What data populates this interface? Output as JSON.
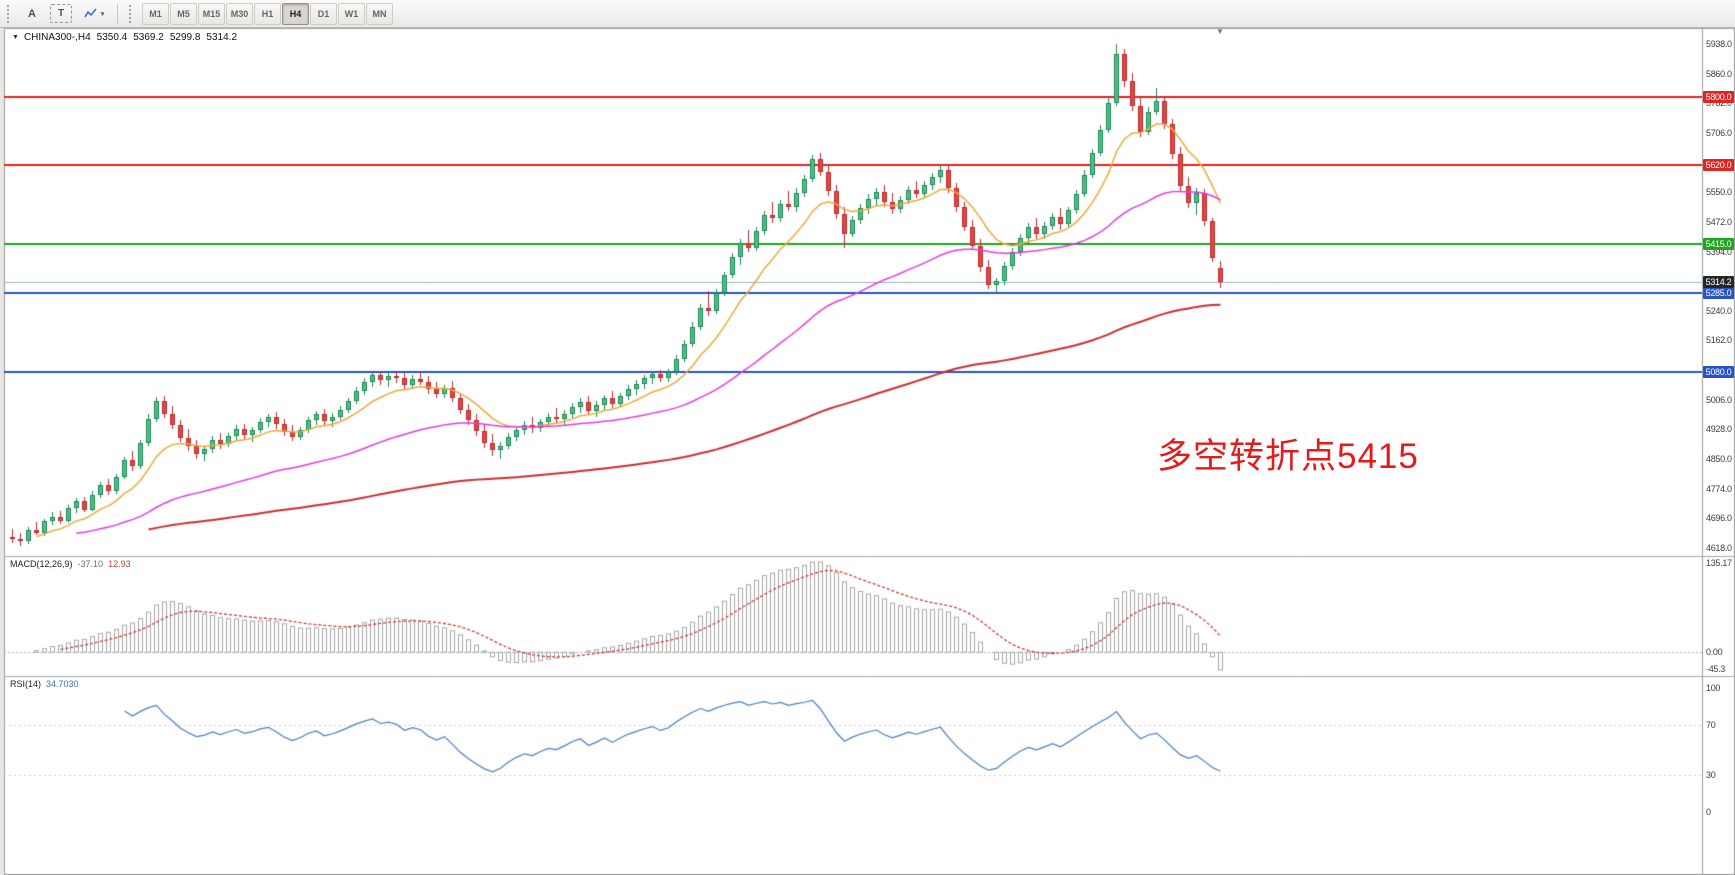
{
  "toolbar": {
    "tools": [
      {
        "id": "annotations",
        "label": "A"
      },
      {
        "id": "text",
        "label": "T"
      }
    ],
    "indicator_caret": "▾",
    "timeframes": [
      {
        "label": "M1",
        "active": false
      },
      {
        "label": "M5",
        "active": false
      },
      {
        "label": "M15",
        "active": false
      },
      {
        "label": "M30",
        "active": false
      },
      {
        "label": "H1",
        "active": false
      },
      {
        "label": "H4",
        "active": true
      },
      {
        "label": "D1",
        "active": false
      },
      {
        "label": "W1",
        "active": false
      },
      {
        "label": "MN",
        "active": false
      }
    ]
  },
  "header": {
    "caret": "▼",
    "symbol": "CHINA300-,H4",
    "open": "5350.4",
    "high": "5369.2",
    "low": "5299.8",
    "close": "5314.2"
  },
  "annotation": {
    "text": "多空转折点5415",
    "color": "#e31b1b"
  },
  "macd_panel": {
    "title": "MACD(12,26,9)",
    "main_value": "-37.10",
    "signal_value": "12.93",
    "axis": {
      "top": "135.17",
      "zero": "0.00",
      "bottom": "-45.3"
    }
  },
  "rsi_panel": {
    "title": "RSI(14)",
    "value": "34.7030",
    "axis": [
      "100",
      "70",
      "30",
      "0"
    ]
  },
  "price_axis": {
    "labels": [
      "5938.0",
      "5860.0",
      "5782.0",
      "5706.0",
      "5628.0",
      "5550.0",
      "5472.0",
      "5394.0",
      "5316.0",
      "5240.0",
      "5162.0",
      "5084.0",
      "5006.0",
      "4928.0",
      "4850.0",
      "4774.0",
      "4696.0",
      "4618.0"
    ],
    "current": {
      "price": 5314.2,
      "label": "5314.2",
      "bg": "#262626"
    }
  },
  "chart_data": {
    "type": "candlestick",
    "symbol": "CHINA300-",
    "timeframe": "H4",
    "title": "CHINA300-,H4",
    "last_ohlc": {
      "open": 5350.4,
      "high": 5369.2,
      "low": 5299.8,
      "close": 5314.2
    },
    "y_range": {
      "min": 4618,
      "max": 5938
    },
    "candle_colors": {
      "up": "#4ebd85",
      "up_border": "#1f8a57",
      "down": "#e24545",
      "down_border": "#b92f2f"
    },
    "hlines": [
      {
        "price": 5800.0,
        "label": "5800.0",
        "color": "#e32222"
      },
      {
        "price": 5620.0,
        "label": "5620.0",
        "color": "#e32222"
      },
      {
        "price": 5415.0,
        "label": "5415.0",
        "color": "#1fa51f"
      },
      {
        "price": 5285.0,
        "label": "5285.0",
        "color": "#2653c9"
      },
      {
        "price": 5080.0,
        "label": "5080.0",
        "color": "#2653c9"
      }
    ],
    "current_price_line": {
      "price": 5314.2,
      "color": "#9cb3c5"
    },
    "moving_averages": [
      {
        "period": 10,
        "color": "#efa93b",
        "start": 3
      },
      {
        "period": 45,
        "color": "#e53ae5",
        "start": 8
      },
      {
        "period": 150,
        "color": "#cf2e2e",
        "start": 17
      }
    ],
    "indicators": {
      "macd": {
        "fast": 12,
        "slow": 26,
        "signal": 9,
        "last_main": -37.1,
        "last_signal": 12.93,
        "axis_max": 135.17,
        "axis_min": -45.3,
        "bar_color": "#a8a8a8",
        "signal_color": "#d23b3b"
      },
      "rsi": {
        "period": 14,
        "last": 34.703,
        "levels": [
          70,
          30
        ],
        "line_color": "#4a7fc1"
      }
    },
    "ohlc": [
      [
        4648,
        4668,
        4630,
        4642
      ],
      [
        4642,
        4656,
        4622,
        4636
      ],
      [
        4636,
        4672,
        4628,
        4665
      ],
      [
        4665,
        4686,
        4652,
        4658
      ],
      [
        4658,
        4695,
        4650,
        4688
      ],
      [
        4688,
        4712,
        4678,
        4700
      ],
      [
        4700,
        4716,
        4680,
        4690
      ],
      [
        4690,
        4730,
        4684,
        4722
      ],
      [
        4722,
        4748,
        4710,
        4740
      ],
      [
        4740,
        4752,
        4712,
        4718
      ],
      [
        4718,
        4766,
        4714,
        4758
      ],
      [
        4758,
        4790,
        4748,
        4782
      ],
      [
        4782,
        4800,
        4756,
        4766
      ],
      [
        4766,
        4812,
        4760,
        4804
      ],
      [
        4804,
        4856,
        4798,
        4848
      ],
      [
        4848,
        4872,
        4820,
        4832
      ],
      [
        4832,
        4900,
        4826,
        4892
      ],
      [
        4892,
        4968,
        4886,
        4956
      ],
      [
        4956,
        5014,
        4948,
        5004
      ],
      [
        5004,
        5016,
        4958,
        4968
      ],
      [
        4968,
        4990,
        4930,
        4940
      ],
      [
        4940,
        4952,
        4896,
        4906
      ],
      [
        4906,
        4930,
        4872,
        4884
      ],
      [
        4884,
        4902,
        4852,
        4864
      ],
      [
        4864,
        4886,
        4846,
        4876
      ],
      [
        4876,
        4912,
        4868,
        4902
      ],
      [
        4902,
        4918,
        4878,
        4890
      ],
      [
        4890,
        4920,
        4882,
        4912
      ],
      [
        4912,
        4940,
        4900,
        4930
      ],
      [
        4930,
        4944,
        4902,
        4914
      ],
      [
        4914,
        4936,
        4896,
        4926
      ],
      [
        4926,
        4958,
        4918,
        4948
      ],
      [
        4948,
        4970,
        4934,
        4960
      ],
      [
        4960,
        4974,
        4930,
        4942
      ],
      [
        4942,
        4956,
        4912,
        4922
      ],
      [
        4922,
        4940,
        4898,
        4908
      ],
      [
        4908,
        4934,
        4900,
        4926
      ],
      [
        4926,
        4962,
        4920,
        4952
      ],
      [
        4952,
        4978,
        4940,
        4968
      ],
      [
        4968,
        4982,
        4938,
        4950
      ],
      [
        4950,
        4972,
        4936,
        4962
      ],
      [
        4962,
        4990,
        4952,
        4980
      ],
      [
        4980,
        5012,
        4972,
        5004
      ],
      [
        5004,
        5040,
        4996,
        5030
      ],
      [
        5030,
        5062,
        5020,
        5052
      ],
      [
        5052,
        5080,
        5040,
        5072
      ],
      [
        5072,
        5082,
        5046,
        5058
      ],
      [
        5058,
        5078,
        5040,
        5068
      ],
      [
        5068,
        5080,
        5050,
        5062
      ],
      [
        5062,
        5076,
        5032,
        5044
      ],
      [
        5044,
        5070,
        5034,
        5060
      ],
      [
        5060,
        5080,
        5044,
        5054
      ],
      [
        5054,
        5068,
        5022,
        5034
      ],
      [
        5034,
        5052,
        5010,
        5022
      ],
      [
        5022,
        5046,
        5012,
        5038
      ],
      [
        5038,
        5056,
        5000,
        5012
      ],
      [
        5012,
        5024,
        4968,
        4980
      ],
      [
        4980,
        4996,
        4940,
        4952
      ],
      [
        4952,
        4970,
        4912,
        4924
      ],
      [
        4924,
        4940,
        4880,
        4894
      ],
      [
        4894,
        4916,
        4858,
        4874
      ],
      [
        4874,
        4896,
        4850,
        4886
      ],
      [
        4886,
        4918,
        4878,
        4908
      ],
      [
        4908,
        4934,
        4898,
        4926
      ],
      [
        4926,
        4950,
        4914,
        4940
      ],
      [
        4940,
        4962,
        4920,
        4932
      ],
      [
        4932,
        4956,
        4922,
        4948
      ],
      [
        4948,
        4972,
        4936,
        4960
      ],
      [
        4960,
        4984,
        4944,
        4956
      ],
      [
        4956,
        4980,
        4940,
        4970
      ],
      [
        4970,
        4998,
        4958,
        4988
      ],
      [
        4988,
        5010,
        4972,
        5000
      ],
      [
        5000,
        5016,
        4966,
        4978
      ],
      [
        4978,
        5002,
        4960,
        4992
      ],
      [
        4992,
        5020,
        4980,
        5010
      ],
      [
        5010,
        5028,
        4984,
        4996
      ],
      [
        4996,
        5024,
        4986,
        5016
      ],
      [
        5016,
        5044,
        5006,
        5034
      ],
      [
        5034,
        5058,
        5020,
        5048
      ],
      [
        5048,
        5072,
        5034,
        5062
      ],
      [
        5062,
        5082,
        5048,
        5074
      ],
      [
        5074,
        5084,
        5052,
        5064
      ],
      [
        5064,
        5086,
        5054,
        5078
      ],
      [
        5078,
        5124,
        5070,
        5114
      ],
      [
        5114,
        5162,
        5106,
        5152
      ],
      [
        5152,
        5210,
        5144,
        5198
      ],
      [
        5198,
        5258,
        5190,
        5246
      ],
      [
        5246,
        5292,
        5226,
        5238
      ],
      [
        5238,
        5296,
        5230,
        5286
      ],
      [
        5286,
        5342,
        5278,
        5332
      ],
      [
        5332,
        5390,
        5324,
        5380
      ],
      [
        5380,
        5428,
        5360,
        5416
      ],
      [
        5416,
        5452,
        5392,
        5404
      ],
      [
        5404,
        5460,
        5396,
        5448
      ],
      [
        5448,
        5500,
        5438,
        5490
      ],
      [
        5490,
        5524,
        5470,
        5482
      ],
      [
        5482,
        5530,
        5472,
        5520
      ],
      [
        5520,
        5554,
        5500,
        5510
      ],
      [
        5510,
        5560,
        5498,
        5548
      ],
      [
        5548,
        5596,
        5536,
        5584
      ],
      [
        5584,
        5648,
        5576,
        5636
      ],
      [
        5636,
        5652,
        5592,
        5604
      ],
      [
        5604,
        5620,
        5540,
        5552
      ],
      [
        5552,
        5568,
        5480,
        5492
      ],
      [
        5492,
        5510,
        5404,
        5440
      ],
      [
        5440,
        5488,
        5432,
        5478
      ],
      [
        5478,
        5520,
        5466,
        5508
      ],
      [
        5508,
        5544,
        5494,
        5532
      ],
      [
        5532,
        5562,
        5516,
        5550
      ],
      [
        5550,
        5570,
        5512,
        5524
      ],
      [
        5524,
        5548,
        5494,
        5506
      ],
      [
        5506,
        5540,
        5496,
        5530
      ],
      [
        5530,
        5566,
        5520,
        5556
      ],
      [
        5556,
        5580,
        5534,
        5546
      ],
      [
        5546,
        5578,
        5536,
        5568
      ],
      [
        5568,
        5600,
        5556,
        5590
      ],
      [
        5590,
        5622,
        5574,
        5608
      ],
      [
        5608,
        5618,
        5548,
        5560
      ],
      [
        5560,
        5574,
        5498,
        5510
      ],
      [
        5510,
        5524,
        5448,
        5460
      ],
      [
        5460,
        5478,
        5398,
        5410
      ],
      [
        5410,
        5428,
        5342,
        5354
      ],
      [
        5354,
        5372,
        5296,
        5308
      ],
      [
        5308,
        5326,
        5282,
        5318
      ],
      [
        5318,
        5366,
        5308,
        5356
      ],
      [
        5356,
        5404,
        5346,
        5394
      ],
      [
        5394,
        5440,
        5384,
        5430
      ],
      [
        5430,
        5468,
        5418,
        5458
      ],
      [
        5458,
        5482,
        5428,
        5440
      ],
      [
        5440,
        5472,
        5426,
        5462
      ],
      [
        5462,
        5496,
        5450,
        5486
      ],
      [
        5486,
        5508,
        5452,
        5466
      ],
      [
        5466,
        5512,
        5458,
        5502
      ],
      [
        5502,
        5556,
        5494,
        5544
      ],
      [
        5544,
        5608,
        5536,
        5596
      ],
      [
        5596,
        5664,
        5588,
        5652
      ],
      [
        5652,
        5726,
        5644,
        5714
      ],
      [
        5714,
        5796,
        5706,
        5784
      ],
      [
        5784,
        5938,
        5776,
        5912
      ],
      [
        5912,
        5926,
        5826,
        5840
      ],
      [
        5840,
        5862,
        5762,
        5776
      ],
      [
        5776,
        5798,
        5694,
        5708
      ],
      [
        5708,
        5772,
        5700,
        5760
      ],
      [
        5760,
        5822,
        5752,
        5788
      ],
      [
        5788,
        5802,
        5716,
        5728
      ],
      [
        5728,
        5742,
        5636,
        5650
      ],
      [
        5650,
        5668,
        5552,
        5566
      ],
      [
        5566,
        5590,
        5508,
        5522
      ],
      [
        5522,
        5560,
        5490,
        5548
      ],
      [
        5548,
        5558,
        5462,
        5474
      ],
      [
        5474,
        5482,
        5366,
        5378
      ],
      [
        5350.4,
        5369.2,
        5299.8,
        5314.2
      ]
    ]
  }
}
